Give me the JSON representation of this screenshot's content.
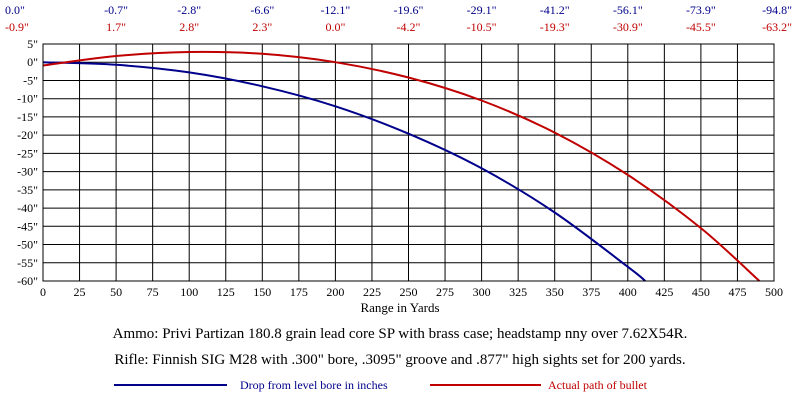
{
  "chart_data": {
    "type": "line",
    "xlabel": "Range in Yards",
    "ylabel": "",
    "xlim": [
      0,
      500
    ],
    "ylim": [
      -60,
      5
    ],
    "x_ticks": [
      0,
      25,
      50,
      75,
      100,
      125,
      150,
      175,
      200,
      225,
      250,
      275,
      300,
      325,
      350,
      375,
      400,
      425,
      450,
      475,
      500
    ],
    "y_ticks": [
      5,
      0,
      -5,
      -10,
      -15,
      -20,
      -25,
      -30,
      -35,
      -40,
      -45,
      -50,
      -55,
      -60
    ],
    "y_tick_labels": [
      "5\"",
      "0\"",
      "-5\"",
      "-10\"",
      "-15\"",
      "-20\"",
      "-25\"",
      "-30\"",
      "-35\"",
      "-40\"",
      "-45\"",
      "-50\"",
      "-55\"",
      "-60\""
    ],
    "grid": true,
    "top_rows": {
      "drop": [
        "0.0\"",
        "-0.7\"",
        "-2.8\"",
        "-6.6\"",
        "-12.1\"",
        "-19.6\"",
        "-29.1\"",
        "-41.2\"",
        "-56.1\"",
        "-73.9\"",
        "-94.8\""
      ],
      "path": [
        "-0.9\"",
        "1.7\"",
        "2.8\"",
        "2.3\"",
        "0.0\"",
        "-4.2\"",
        "-10.5\"",
        "-19.3\"",
        "-30.9\"",
        "-45.5\"",
        "-63.2\""
      ]
    },
    "series": [
      {
        "name": "Drop from level bore in inches",
        "color": "#00008b",
        "x": [
          0,
          50,
          100,
          150,
          200,
          250,
          300,
          350,
          400,
          412
        ],
        "values": [
          0.0,
          -0.7,
          -2.8,
          -6.6,
          -12.1,
          -19.6,
          -29.1,
          -41.2,
          -56.1,
          -60.0
        ]
      },
      {
        "name": "Actual path of bullet",
        "color": "#c00000",
        "x": [
          0,
          50,
          100,
          150,
          200,
          250,
          300,
          350,
          400,
          450,
          490
        ],
        "values": [
          -0.9,
          1.7,
          2.8,
          2.3,
          0.0,
          -4.2,
          -10.5,
          -19.3,
          -30.9,
          -45.5,
          -60.0
        ]
      }
    ]
  },
  "captions": {
    "ammo": "Ammo:  Privi Partizan 180.8 grain lead core SP with brass case; headstamp nny over 7.62X54R.",
    "rifle": "Rifle:  Finnish SIG M28 with .300\" bore, .3095\" groove and .877\" high sights set for 200 yards."
  },
  "legend": {
    "drop_label": "Drop from level bore in inches",
    "path_label": "Actual path of bullet"
  }
}
